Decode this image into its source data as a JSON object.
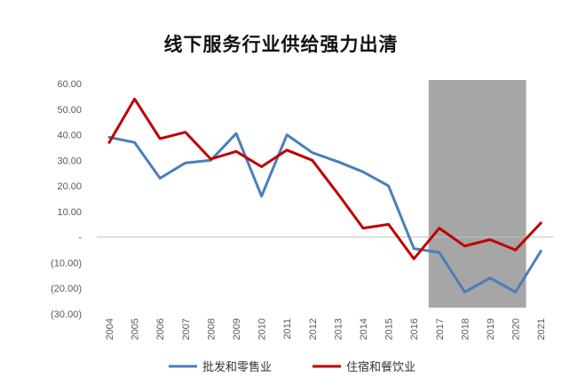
{
  "chart_data": {
    "type": "line",
    "title": "线下服务行业供给强力出清",
    "x": [
      "2004",
      "2005",
      "2006",
      "2007",
      "2008",
      "2009",
      "2010",
      "2011",
      "2012",
      "2013",
      "2014",
      "2015",
      "2016",
      "2017",
      "2018",
      "2019",
      "2020",
      "2021"
    ],
    "y_ticks": [
      "60.00",
      "50.00",
      "40.00",
      "30.00",
      "20.00",
      "10.00",
      "-",
      "(10.00)",
      "(20.00)",
      "(30.00)"
    ],
    "ylim": [
      -30,
      60
    ],
    "shaded_x_range": [
      "2017",
      "2020"
    ],
    "grid": false,
    "legend_position": "bottom",
    "series": [
      {
        "name": "批发和零售业",
        "color": "#4a7ebb",
        "values": [
          39,
          37,
          23,
          29,
          30,
          40.5,
          16,
          40,
          33,
          29.5,
          25.5,
          20,
          -4.5,
          -6,
          -21.5,
          -16,
          -21.5,
          -5.5
        ]
      },
      {
        "name": "住宿和餐饮业",
        "color": "#c00000",
        "values": [
          37,
          54,
          38.5,
          41,
          30.5,
          33.5,
          27.5,
          34,
          30,
          17,
          3.5,
          5,
          -8.5,
          3.5,
          -3.5,
          -1,
          -5,
          5.5
        ]
      }
    ]
  }
}
